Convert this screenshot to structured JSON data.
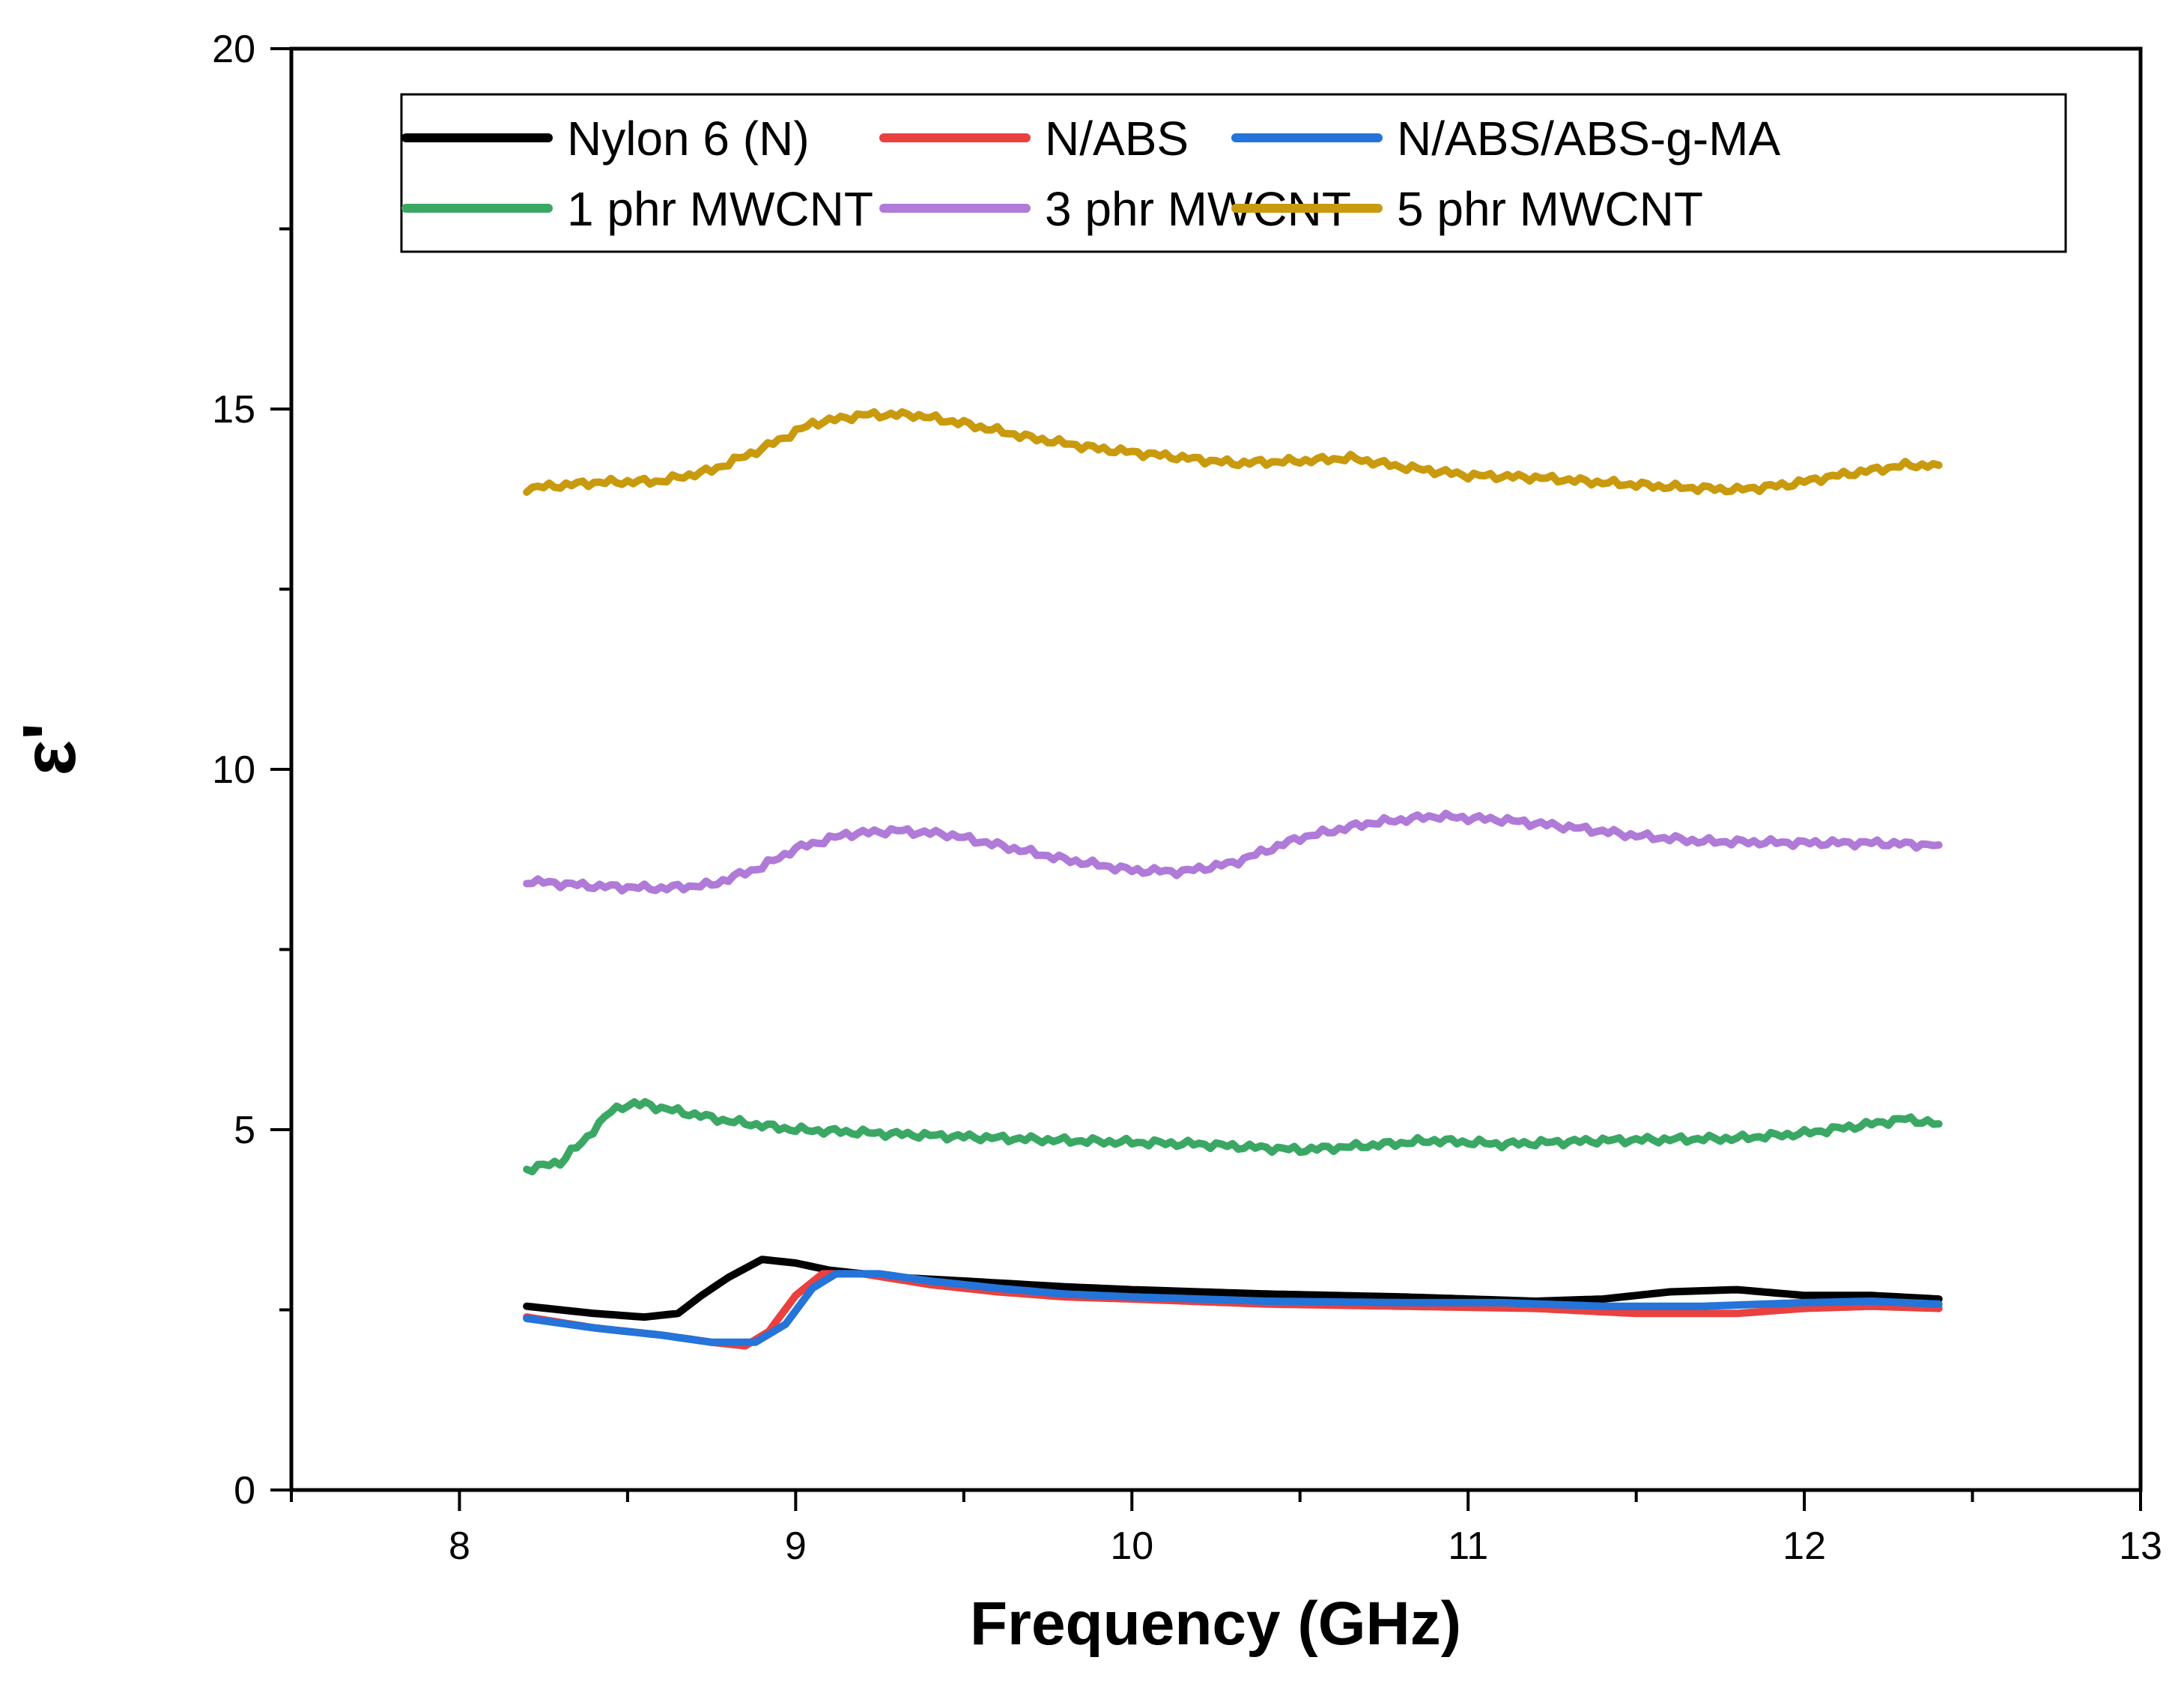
{
  "chart_data": {
    "type": "line",
    "title": "",
    "xlabel": "Frequency (GHz)",
    "ylabel": "ε'",
    "xlim": [
      7.5,
      13
    ],
    "ylim": [
      0,
      20
    ],
    "xticks": [
      8,
      9,
      10,
      11,
      12,
      13
    ],
    "yticks": [
      0,
      5,
      10,
      15,
      20
    ],
    "legend": "top",
    "series": [
      {
        "name": "Nylon 6 (N)",
        "color": "#000000",
        "points": [
          [
            8.2,
            2.55
          ],
          [
            8.4,
            2.45
          ],
          [
            8.55,
            2.4
          ],
          [
            8.65,
            2.45
          ],
          [
            8.72,
            2.7
          ],
          [
            8.8,
            2.95
          ],
          [
            8.9,
            3.2
          ],
          [
            9.0,
            3.15
          ],
          [
            9.1,
            3.05
          ],
          [
            9.3,
            2.95
          ],
          [
            9.5,
            2.9
          ],
          [
            9.8,
            2.82
          ],
          [
            10.0,
            2.78
          ],
          [
            10.4,
            2.72
          ],
          [
            10.8,
            2.68
          ],
          [
            11.2,
            2.62
          ],
          [
            11.4,
            2.65
          ],
          [
            11.6,
            2.75
          ],
          [
            11.8,
            2.78
          ],
          [
            12.0,
            2.7
          ],
          [
            12.2,
            2.7
          ],
          [
            12.4,
            2.65
          ]
        ]
      },
      {
        "name": "N/ABS",
        "color": "#e8413f",
        "points": [
          [
            8.2,
            2.4
          ],
          [
            8.4,
            2.25
          ],
          [
            8.6,
            2.15
          ],
          [
            8.75,
            2.05
          ],
          [
            8.85,
            2.0
          ],
          [
            8.92,
            2.2
          ],
          [
            9.0,
            2.7
          ],
          [
            9.08,
            3.0
          ],
          [
            9.2,
            3.0
          ],
          [
            9.4,
            2.85
          ],
          [
            9.6,
            2.75
          ],
          [
            9.8,
            2.68
          ],
          [
            10.0,
            2.65
          ],
          [
            10.4,
            2.58
          ],
          [
            10.8,
            2.55
          ],
          [
            11.2,
            2.52
          ],
          [
            11.5,
            2.45
          ],
          [
            11.8,
            2.45
          ],
          [
            12.0,
            2.52
          ],
          [
            12.2,
            2.55
          ],
          [
            12.4,
            2.52
          ]
        ]
      },
      {
        "name": "N/ABS/ABS-g-MA",
        "color": "#2474d9",
        "points": [
          [
            8.2,
            2.38
          ],
          [
            8.4,
            2.25
          ],
          [
            8.6,
            2.15
          ],
          [
            8.75,
            2.05
          ],
          [
            8.88,
            2.05
          ],
          [
            8.97,
            2.3
          ],
          [
            9.05,
            2.8
          ],
          [
            9.12,
            3.0
          ],
          [
            9.25,
            3.0
          ],
          [
            9.4,
            2.9
          ],
          [
            9.6,
            2.8
          ],
          [
            9.8,
            2.72
          ],
          [
            10.0,
            2.68
          ],
          [
            10.4,
            2.62
          ],
          [
            10.8,
            2.6
          ],
          [
            11.1,
            2.6
          ],
          [
            11.4,
            2.55
          ],
          [
            11.7,
            2.55
          ],
          [
            12.0,
            2.6
          ],
          [
            12.2,
            2.62
          ],
          [
            12.4,
            2.58
          ]
        ]
      },
      {
        "name": "1 phr MWCNT",
        "color": "#3aa864",
        "points": [
          [
            8.2,
            4.45
          ],
          [
            8.3,
            4.55
          ],
          [
            8.38,
            4.9
          ],
          [
            8.45,
            5.25
          ],
          [
            8.52,
            5.38
          ],
          [
            8.6,
            5.3
          ],
          [
            8.8,
            5.12
          ],
          [
            9.0,
            5.0
          ],
          [
            9.4,
            4.92
          ],
          [
            9.8,
            4.85
          ],
          [
            10.2,
            4.8
          ],
          [
            10.5,
            4.72
          ],
          [
            10.7,
            4.78
          ],
          [
            10.9,
            4.85
          ],
          [
            11.1,
            4.8
          ],
          [
            11.4,
            4.85
          ],
          [
            11.8,
            4.88
          ],
          [
            12.0,
            4.95
          ],
          [
            12.2,
            5.08
          ],
          [
            12.3,
            5.15
          ],
          [
            12.4,
            5.08
          ]
        ]
      },
      {
        "name": "3 phr MWCNT",
        "color": "#b07ad8",
        "points": [
          [
            8.2,
            8.45
          ],
          [
            8.4,
            8.38
          ],
          [
            8.6,
            8.35
          ],
          [
            8.75,
            8.4
          ],
          [
            8.9,
            8.65
          ],
          [
            9.0,
            8.9
          ],
          [
            9.15,
            9.1
          ],
          [
            9.3,
            9.15
          ],
          [
            9.45,
            9.1
          ],
          [
            9.6,
            8.95
          ],
          [
            9.8,
            8.75
          ],
          [
            10.0,
            8.6
          ],
          [
            10.15,
            8.58
          ],
          [
            10.3,
            8.7
          ],
          [
            10.5,
            9.05
          ],
          [
            10.7,
            9.25
          ],
          [
            10.9,
            9.35
          ],
          [
            11.1,
            9.3
          ],
          [
            11.3,
            9.2
          ],
          [
            11.5,
            9.08
          ],
          [
            11.7,
            9.0
          ],
          [
            12.0,
            8.98
          ],
          [
            12.2,
            8.98
          ],
          [
            12.4,
            8.95
          ]
        ]
      },
      {
        "name": "5 phr MWCNT",
        "color": "#c99a0e",
        "points": [
          [
            8.2,
            13.9
          ],
          [
            8.4,
            13.98
          ],
          [
            8.6,
            14.0
          ],
          [
            8.75,
            14.15
          ],
          [
            8.9,
            14.45
          ],
          [
            9.05,
            14.8
          ],
          [
            9.2,
            14.92
          ],
          [
            9.35,
            14.92
          ],
          [
            9.5,
            14.8
          ],
          [
            9.7,
            14.6
          ],
          [
            9.9,
            14.45
          ],
          [
            10.1,
            14.35
          ],
          [
            10.3,
            14.25
          ],
          [
            10.5,
            14.28
          ],
          [
            10.65,
            14.32
          ],
          [
            10.8,
            14.2
          ],
          [
            11.0,
            14.08
          ],
          [
            11.2,
            14.05
          ],
          [
            11.4,
            13.98
          ],
          [
            11.6,
            13.92
          ],
          [
            11.8,
            13.88
          ],
          [
            11.95,
            13.95
          ],
          [
            12.1,
            14.08
          ],
          [
            12.3,
            14.22
          ],
          [
            12.4,
            14.22
          ]
        ]
      }
    ]
  }
}
